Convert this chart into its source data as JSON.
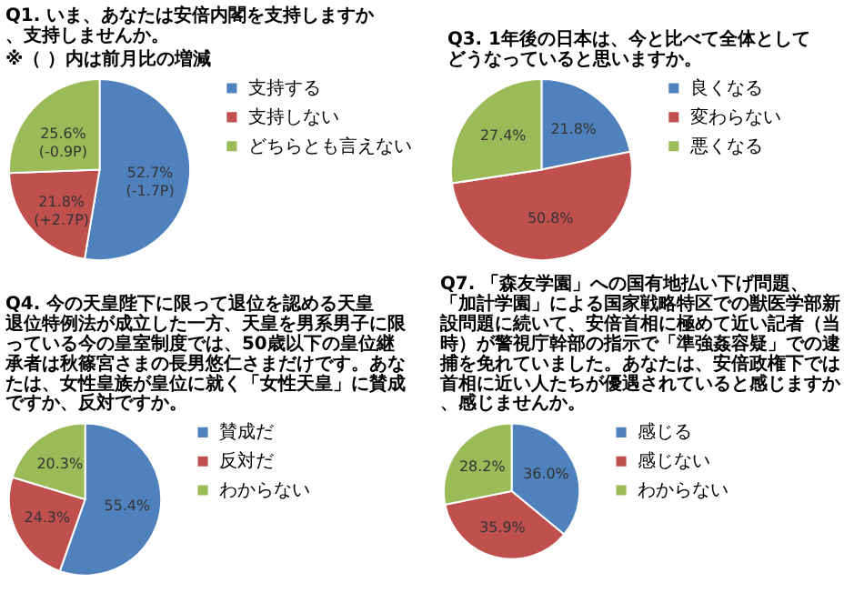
{
  "chart_data": [
    {
      "type": "pie",
      "title": "Q1. いま、あなたは安倍内閣を支持しますか、支持しませんか。",
      "subtitle": "※（ ）内は前月比の増減",
      "categories": [
        "支持する",
        "支持しない",
        "どちらとも言えない"
      ],
      "values": [
        52.7,
        21.8,
        25.6
      ],
      "colors": [
        "#4f81bd",
        "#c0504d",
        "#9bbb59"
      ],
      "value_labels": [
        "52.7%\n(-1.7P)",
        "21.8%\n(+2.7P)",
        "25.6%\n(-0.9P)"
      ],
      "legend": "right"
    },
    {
      "type": "pie",
      "title": "Q3. 1年後の日本は、今と比べて全体としてどうなっていると思いますか。",
      "categories": [
        "良くなる",
        "変わらない",
        "悪くなる"
      ],
      "values": [
        21.8,
        50.8,
        27.4
      ],
      "colors": [
        "#4f81bd",
        "#c0504d",
        "#9bbb59"
      ],
      "value_labels": [
        "21.8%",
        "50.8%",
        "27.4%"
      ],
      "legend": "right"
    },
    {
      "type": "pie",
      "title": "Q4. 今の天皇陛下に限って退位を認める天皇退位特例法が成立した一方、天皇を男系男子に限っている今の皇室制度では、50歳以下の皇位継承者は秋篠宮さまの長男悠仁さまだけです。あなたは、女性皇族が皇位に就く「女性天皇」に賛成ですか、反対ですか。",
      "categories": [
        "賛成だ",
        "反対だ",
        "わからない"
      ],
      "values": [
        55.4,
        24.3,
        20.3
      ],
      "colors": [
        "#4f81bd",
        "#c0504d",
        "#9bbb59"
      ],
      "value_labels": [
        "55.4%",
        "24.3%",
        "20.3%"
      ],
      "legend": "right"
    },
    {
      "type": "pie",
      "title": "Q7. 「森友学園」への国有地払い下げ問題、「加計学園」による国家戦略特区での獣医学部新設問題に続いて、安倍首相に極めて近い記者（当時）が警視庁幹部の指示で「準強姦容疑」での逮捕を免れていました。あなたは、安倍政権下では首相に近い人たちが優遇されていると感じますか、感じませんか。",
      "categories": [
        "感じる",
        "感じない",
        "わからない"
      ],
      "values": [
        36.0,
        35.9,
        28.2
      ],
      "colors": [
        "#4f81bd",
        "#c0504d",
        "#9bbb59"
      ],
      "value_labels": [
        "36.0%",
        "35.9%",
        "28.2%"
      ],
      "legend": "right"
    }
  ]
}
